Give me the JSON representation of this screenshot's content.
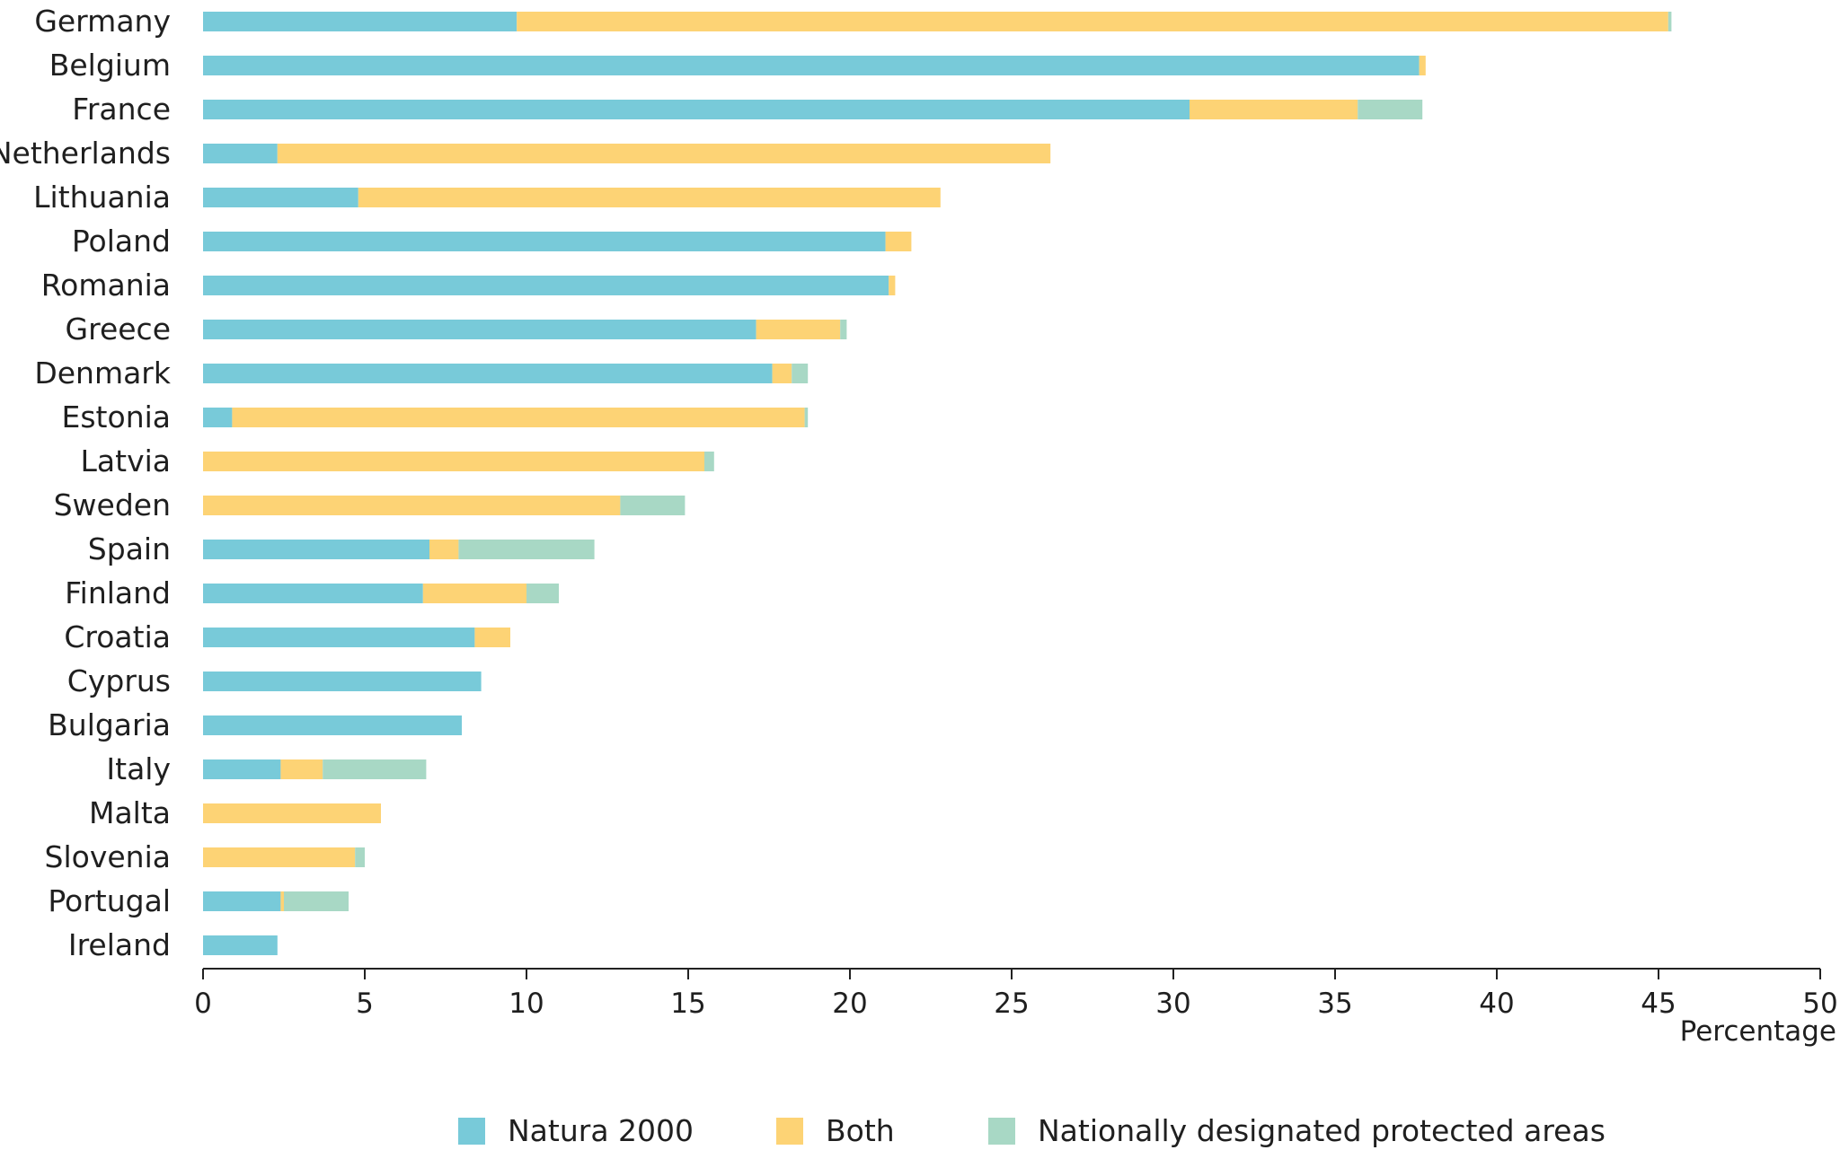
{
  "chart_data": {
    "type": "bar",
    "orientation": "horizontal",
    "stacked": true,
    "categories": [
      "Germany",
      "Belgium",
      "France",
      "Netherlands",
      "Lithuania",
      "Poland",
      "Romania",
      "Greece",
      "Denmark",
      "Estonia",
      "Latvia",
      "Sweden",
      "Spain",
      "Finland",
      "Croatia",
      "Cyprus",
      "Bulgaria",
      "Italy",
      "Malta",
      "Slovenia",
      "Portugal",
      "Ireland"
    ],
    "series": [
      {
        "name": "Natura 2000",
        "color": "#78cad9",
        "values": [
          9.7,
          37.6,
          30.5,
          2.3,
          4.8,
          21.1,
          21.2,
          17.1,
          17.6,
          0.9,
          0.0,
          0.0,
          7.0,
          6.8,
          8.4,
          8.6,
          8.0,
          2.4,
          0.0,
          0.0,
          2.4,
          2.3
        ]
      },
      {
        "name": "Both",
        "color": "#fdd375",
        "values": [
          35.6,
          0.2,
          5.2,
          23.9,
          18.0,
          0.8,
          0.2,
          2.6,
          0.6,
          17.7,
          15.5,
          12.9,
          0.9,
          3.2,
          1.1,
          0.0,
          0.0,
          1.3,
          5.5,
          4.7,
          0.1,
          0.0
        ]
      },
      {
        "name": "Nationally designated protected areas",
        "color": "#a8d8c5",
        "values": [
          0.1,
          0.0,
          2.0,
          0.0,
          0.0,
          0.0,
          0.0,
          0.2,
          0.5,
          0.1,
          0.3,
          2.0,
          4.2,
          1.0,
          0.0,
          0.0,
          0.0,
          3.2,
          0.0,
          0.3,
          2.0,
          0.0
        ]
      }
    ],
    "xlabel": "Percentage",
    "xlim": [
      0,
      50
    ],
    "xticks": [
      0,
      5,
      10,
      15,
      20,
      25,
      30,
      35,
      40,
      45,
      50
    ],
    "grid": false,
    "legend_position": "bottom"
  }
}
